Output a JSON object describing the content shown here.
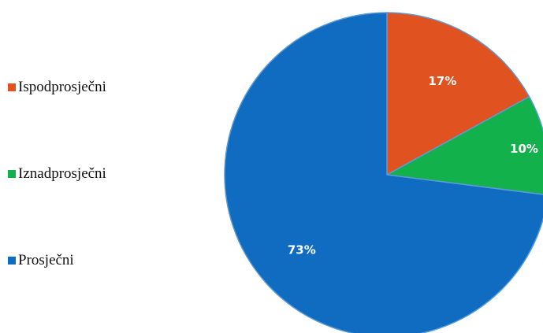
{
  "chart_data": {
    "type": "pie",
    "slices": [
      {
        "label": "Ispodprosječni",
        "value": 17,
        "display": "17%",
        "color": "#e0521f"
      },
      {
        "label": "Iznadprosječni",
        "value": 10,
        "display": "10%",
        "color": "#12b14c"
      },
      {
        "label": "Prosječni",
        "value": 73,
        "display": "73%",
        "color": "#0f6cc0"
      }
    ],
    "legend": {
      "placement": "left",
      "items": [
        {
          "label": "Ispodprosječni",
          "color": "#e0521f"
        },
        {
          "label": "Iznadprosječni",
          "color": "#12b14c"
        },
        {
          "label": "Prosječni",
          "color": "#0f6cc0"
        }
      ]
    },
    "start_angle_degrees": 0,
    "direction": "clockwise"
  }
}
